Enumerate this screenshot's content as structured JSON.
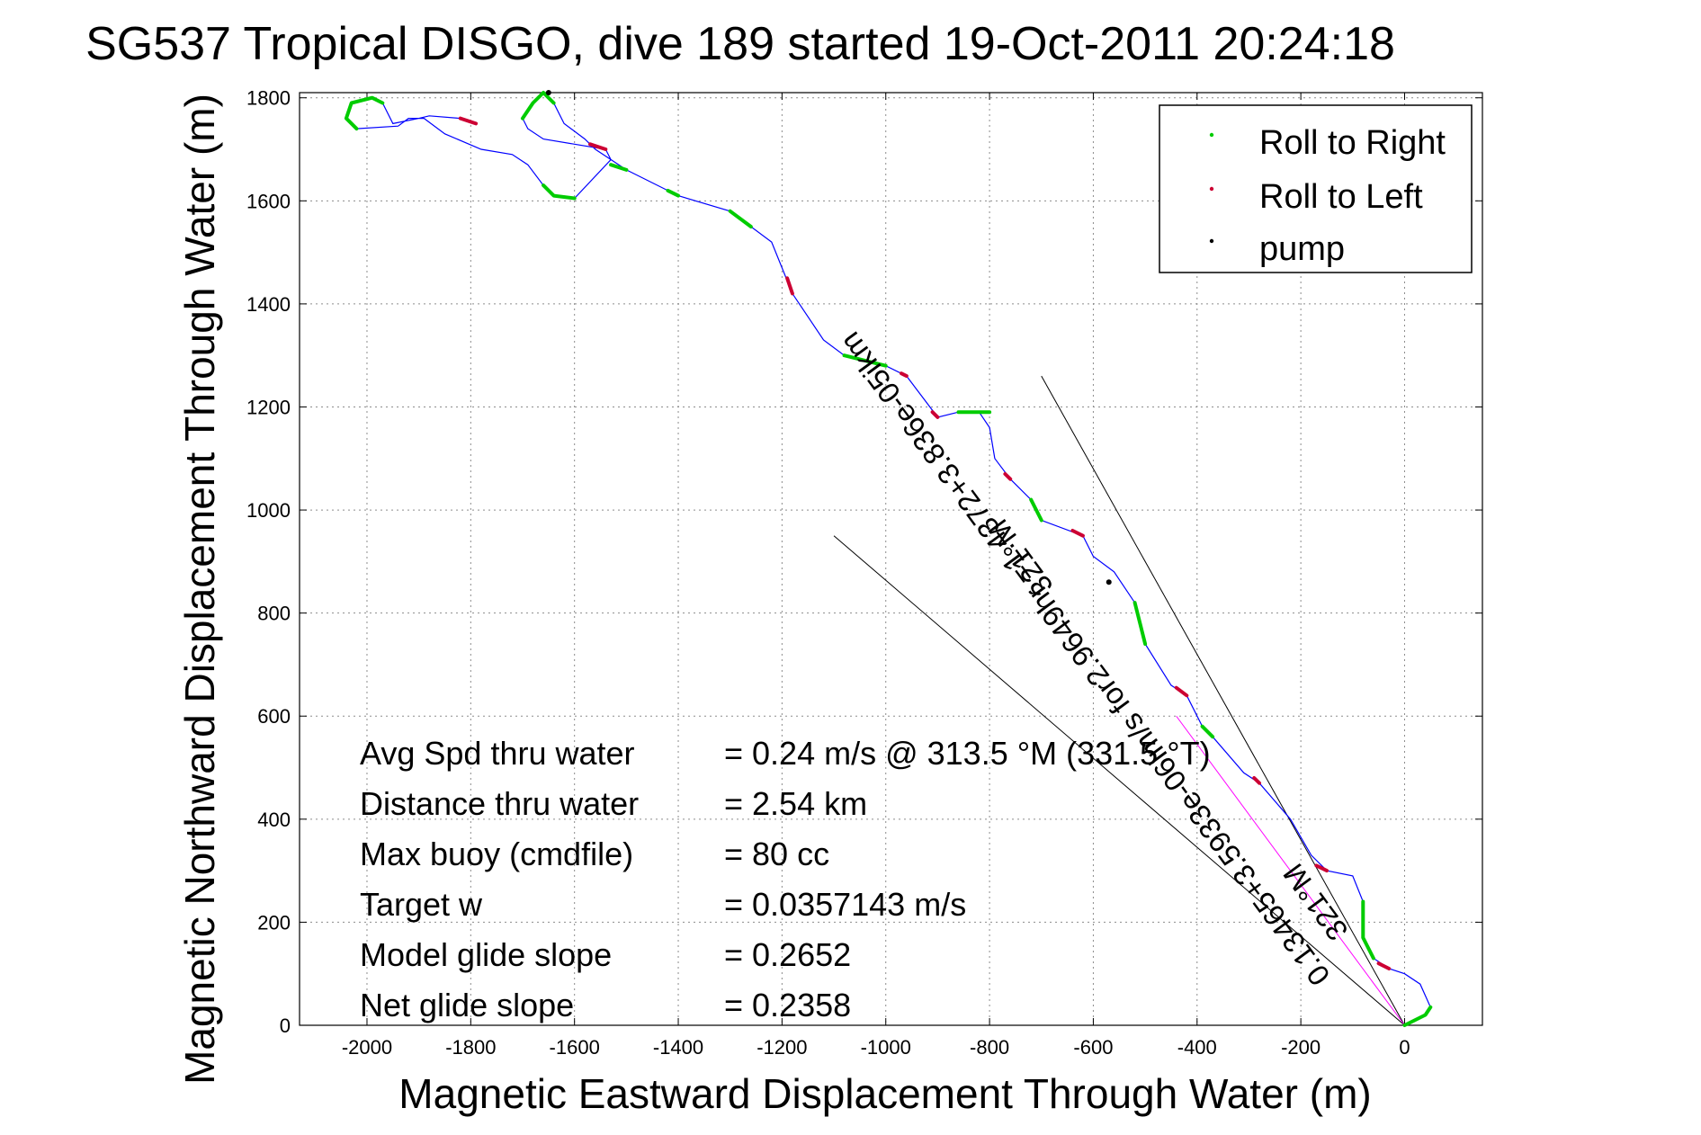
{
  "chart_data": {
    "type": "line",
    "title": "SG537 Tropical DISGO, dive 189 started 19-Oct-2011 20:24:18",
    "xlabel": "Magnetic Eastward Displacement Through Water (m)",
    "ylabel": "Magnetic Northward Displacement Through Water (m)",
    "xlim": [
      -2130,
      150
    ],
    "ylim": [
      0,
      1810
    ],
    "xticks": [
      -2000,
      -1800,
      -1600,
      -1400,
      -1200,
      -1000,
      -800,
      -600,
      -400,
      -200,
      0
    ],
    "yticks": [
      0,
      200,
      400,
      600,
      800,
      1000,
      1200,
      1400,
      1600,
      1800
    ],
    "grid": true,
    "legend": {
      "placement": "top-right",
      "entries": [
        {
          "label": "Roll to Right",
          "color": "#00cc00"
        },
        {
          "label": "Roll to Left",
          "color": "#cc0033"
        },
        {
          "label": "pump",
          "color": "#000000"
        }
      ]
    },
    "track": {
      "color": "#0000ff",
      "points": [
        [
          0,
          0
        ],
        [
          40,
          20
        ],
        [
          50,
          35
        ],
        [
          30,
          80
        ],
        [
          0,
          100
        ],
        [
          -30,
          110
        ],
        [
          -60,
          130
        ],
        [
          -80,
          170
        ],
        [
          -80,
          240
        ],
        [
          -100,
          290
        ],
        [
          -150,
          300
        ],
        [
          -180,
          330
        ],
        [
          -220,
          400
        ],
        [
          -280,
          470
        ],
        [
          -310,
          490
        ],
        [
          -370,
          560
        ],
        [
          -390,
          580
        ],
        [
          -420,
          640
        ],
        [
          -450,
          660
        ],
        [
          -500,
          740
        ],
        [
          -520,
          820
        ],
        [
          -560,
          880
        ],
        [
          -600,
          910
        ],
        [
          -620,
          950
        ],
        [
          -700,
          980
        ],
        [
          -720,
          1020
        ],
        [
          -760,
          1060
        ],
        [
          -790,
          1100
        ],
        [
          -800,
          1160
        ],
        [
          -820,
          1190
        ],
        [
          -860,
          1190
        ],
        [
          -900,
          1180
        ],
        [
          -930,
          1220
        ],
        [
          -960,
          1260
        ],
        [
          -1000,
          1280
        ],
        [
          -1040,
          1290
        ],
        [
          -1080,
          1300
        ],
        [
          -1120,
          1330
        ],
        [
          -1180,
          1420
        ],
        [
          -1220,
          1520
        ],
        [
          -1260,
          1550
        ],
        [
          -1300,
          1580
        ],
        [
          -1400,
          1610
        ],
        [
          -1500,
          1660
        ],
        [
          -1560,
          1700
        ],
        [
          -1580,
          1720
        ],
        [
          -1620,
          1750
        ],
        [
          -1640,
          1790
        ],
        [
          -1660,
          1810
        ],
        [
          -1680,
          1790
        ],
        [
          -1700,
          1760
        ],
        [
          -1690,
          1740
        ],
        [
          -1660,
          1720
        ],
        [
          -1600,
          1710
        ],
        [
          -1540,
          1700
        ],
        [
          -1530,
          1680
        ],
        [
          -1600,
          1605
        ],
        [
          -1640,
          1610
        ],
        [
          -1660,
          1630
        ],
        [
          -1690,
          1670
        ],
        [
          -1720,
          1690
        ],
        [
          -1780,
          1700
        ],
        [
          -1850,
          1730
        ],
        [
          -1890,
          1760
        ],
        [
          -1920,
          1760
        ],
        [
          -1940,
          1745
        ],
        [
          -2020,
          1740
        ],
        [
          -2040,
          1760
        ],
        [
          -2030,
          1790
        ],
        [
          -1990,
          1800
        ],
        [
          -1970,
          1790
        ],
        [
          -1950,
          1750
        ],
        [
          -1900,
          1760
        ],
        [
          -1880,
          1765
        ],
        [
          -1820,
          1760
        ],
        [
          -1790,
          1750
        ]
      ]
    },
    "roll_right_segments": [
      [
        [
          0,
          0
        ],
        [
          40,
          20
        ],
        [
          50,
          35
        ]
      ],
      [
        [
          -60,
          130
        ],
        [
          -80,
          170
        ],
        [
          -80,
          240
        ]
      ],
      [
        [
          -370,
          560
        ],
        [
          -390,
          580
        ]
      ],
      [
        [
          -500,
          740
        ],
        [
          -520,
          820
        ]
      ],
      [
        [
          -700,
          980
        ],
        [
          -720,
          1020
        ]
      ],
      [
        [
          -800,
          1190
        ],
        [
          -860,
          1190
        ]
      ],
      [
        [
          -1000,
          1280
        ],
        [
          -1080,
          1300
        ]
      ],
      [
        [
          -1260,
          1550
        ],
        [
          -1300,
          1580
        ]
      ],
      [
        [
          -1400,
          1610
        ],
        [
          -1420,
          1620
        ]
      ],
      [
        [
          -1640,
          1790
        ],
        [
          -1660,
          1810
        ],
        [
          -1680,
          1790
        ],
        [
          -1700,
          1760
        ]
      ],
      [
        [
          -1600,
          1605
        ],
        [
          -1640,
          1610
        ],
        [
          -1660,
          1630
        ]
      ],
      [
        [
          -2020,
          1740
        ],
        [
          -2040,
          1760
        ],
        [
          -2030,
          1790
        ],
        [
          -1990,
          1800
        ],
        [
          -1970,
          1790
        ]
      ],
      [
        [
          -1500,
          1660
        ],
        [
          -1530,
          1670
        ]
      ]
    ],
    "roll_left_segments": [
      [
        [
          -30,
          110
        ],
        [
          -50,
          120
        ]
      ],
      [
        [
          -150,
          300
        ],
        [
          -170,
          310
        ]
      ],
      [
        [
          -280,
          470
        ],
        [
          -290,
          480
        ]
      ],
      [
        [
          -420,
          640
        ],
        [
          -440,
          655
        ]
      ],
      [
        [
          -620,
          950
        ],
        [
          -640,
          960
        ]
      ],
      [
        [
          -760,
          1060
        ],
        [
          -770,
          1070
        ]
      ],
      [
        [
          -900,
          1180
        ],
        [
          -910,
          1190
        ]
      ],
      [
        [
          -960,
          1260
        ],
        [
          -970,
          1265
        ]
      ],
      [
        [
          -1180,
          1420
        ],
        [
          -1190,
          1450
        ]
      ],
      [
        [
          -1540,
          1700
        ],
        [
          -1570,
          1710
        ]
      ],
      [
        [
          -1820,
          1760
        ],
        [
          -1790,
          1750
        ]
      ]
    ],
    "pump_points": [
      [
        -570,
        860
      ],
      [
        -1650,
        1810
      ]
    ],
    "bounding_lines": [
      {
        "from": [
          0,
          0
        ],
        "to": [
          -1100,
          950
        ]
      },
      {
        "from": [
          0,
          0
        ],
        "to": [
          -700,
          1260
        ]
      }
    ],
    "net_heading_line": {
      "from": [
        0,
        0
      ],
      "to": [
        -440,
        600
      ],
      "color": "#ff00ff"
    },
    "annotations": {
      "current": "0.13465+3.5933e-06im/s for2.9649hr =1.4372+3.836e-05ikm",
      "current_heading": "321°M",
      "current_heading_2": "321°M"
    },
    "stats": [
      {
        "label": "Avg Spd thru water",
        "value": "=  0.24 m/s @ 313.5 °M (331.5 °T)"
      },
      {
        "label": "Distance thru water",
        "value": "=  2.54 km"
      },
      {
        "label": "Max buoy (cmdfile)",
        "value": "= 80 cc"
      },
      {
        "label": "Target w",
        "value": "= 0.0357143 m/s"
      },
      {
        "label": "Model glide slope",
        "value": "= 0.2652"
      },
      {
        "label": "Net glide slope",
        "value": "= 0.2358"
      }
    ]
  }
}
